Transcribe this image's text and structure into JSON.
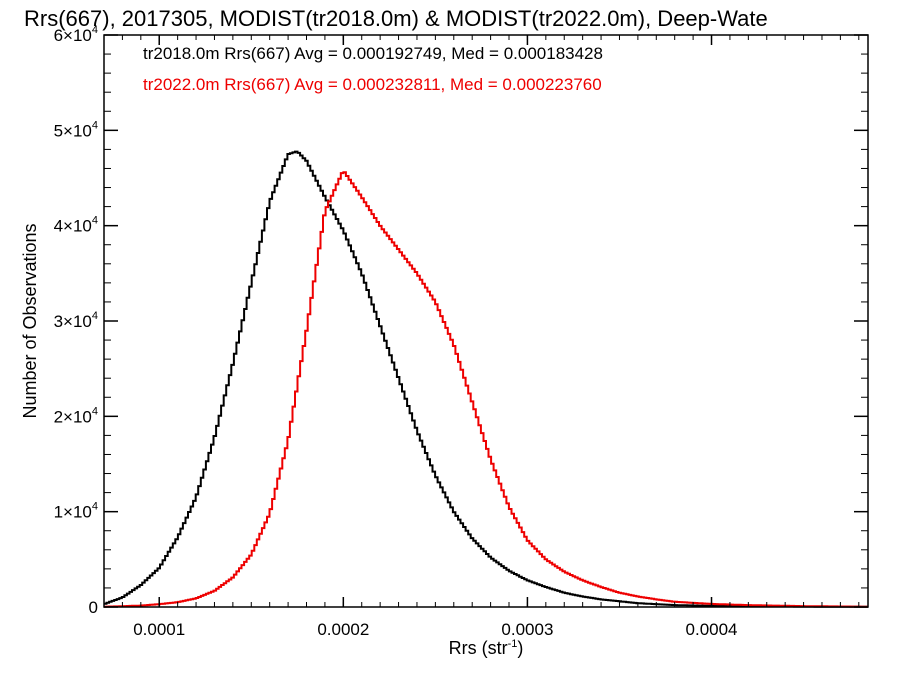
{
  "chart_data": {
    "type": "line",
    "style": "histogram-step",
    "title": "Rrs(667), 2017305, MODIST(tr2018.0m) & MODIST(tr2022.0m), Deep-Wate",
    "xlabel": "Rrs (str",
    "xlabel_exp": "-1",
    "xlabel_close": ")",
    "ylabel": "Number of Observations",
    "xlim": [
      7e-05,
      0.000485
    ],
    "ylim": [
      0,
      60000
    ],
    "x_ticks": [
      {
        "value": 0.0001,
        "label": "0.0001"
      },
      {
        "value": 0.0002,
        "label": "0.0002"
      },
      {
        "value": 0.0003,
        "label": "0.0003"
      },
      {
        "value": 0.0004,
        "label": "0.0004"
      }
    ],
    "y_ticks": [
      {
        "value": 0,
        "label": "0",
        "exp": ""
      },
      {
        "value": 10000,
        "label": "1×10",
        "exp": "4"
      },
      {
        "value": 20000,
        "label": "2×10",
        "exp": "4"
      },
      {
        "value": 30000,
        "label": "3×10",
        "exp": "4"
      },
      {
        "value": 40000,
        "label": "4×10",
        "exp": "4"
      },
      {
        "value": 50000,
        "label": "5×10",
        "exp": "4"
      },
      {
        "value": 60000,
        "label": "6×10",
        "exp": "4"
      }
    ],
    "grid": false,
    "legend_position": "top-left",
    "series": [
      {
        "name": "tr2018.0m",
        "color": "#000000",
        "legend": "tr2018.0m Rrs(667) Avg = 0.000192749, Med = 0.000183428",
        "points": [
          [
            7e-05,
            300
          ],
          [
            8e-05,
            1000
          ],
          [
            9e-05,
            2300
          ],
          [
            0.0001,
            4100
          ],
          [
            0.00011,
            7300
          ],
          [
            0.00012,
            11500
          ],
          [
            0.00013,
            17800
          ],
          [
            0.00014,
            25500
          ],
          [
            0.00015,
            34000
          ],
          [
            0.00016,
            42500
          ],
          [
            0.00017,
            47500
          ],
          [
            0.000175,
            47800
          ],
          [
            0.00018,
            46800
          ],
          [
            0.00019,
            43000
          ],
          [
            0.0002,
            39500
          ],
          [
            0.00021,
            35000
          ],
          [
            0.00022,
            29500
          ],
          [
            0.00023,
            24000
          ],
          [
            0.00024,
            18500
          ],
          [
            0.00025,
            13800
          ],
          [
            0.00026,
            10000
          ],
          [
            0.00027,
            7200
          ],
          [
            0.00028,
            5200
          ],
          [
            0.00029,
            3800
          ],
          [
            0.0003,
            2800
          ],
          [
            0.00031,
            2100
          ],
          [
            0.00032,
            1500
          ],
          [
            0.00033,
            1100
          ],
          [
            0.00034,
            800
          ],
          [
            0.00035,
            600
          ],
          [
            0.00036,
            400
          ],
          [
            0.00037,
            300
          ],
          [
            0.00038,
            200
          ],
          [
            0.0004,
            120
          ],
          [
            0.00042,
            80
          ],
          [
            0.00045,
            40
          ],
          [
            0.000485,
            20
          ]
        ]
      },
      {
        "name": "tr2022.0m",
        "color": "#ee0000",
        "legend": "tr2022.0m Rrs(667) Avg = 0.000232811, Med = 0.000223760",
        "points": [
          [
            7e-05,
            30
          ],
          [
            8e-05,
            80
          ],
          [
            9e-05,
            150
          ],
          [
            0.0001,
            300
          ],
          [
            0.00011,
            500
          ],
          [
            0.00012,
            900
          ],
          [
            0.00013,
            1700
          ],
          [
            0.00014,
            3100
          ],
          [
            0.00015,
            5500
          ],
          [
            0.00016,
            9800
          ],
          [
            0.00017,
            17500
          ],
          [
            0.00018,
            29000
          ],
          [
            0.00019,
            41500
          ],
          [
            0.0002,
            45800
          ],
          [
            0.00021,
            43000
          ],
          [
            0.00022,
            40000
          ],
          [
            0.00023,
            37500
          ],
          [
            0.00024,
            35000
          ],
          [
            0.00025,
            32000
          ],
          [
            0.00026,
            27500
          ],
          [
            0.00027,
            21500
          ],
          [
            0.00028,
            15500
          ],
          [
            0.00029,
            10500
          ],
          [
            0.0003,
            7000
          ],
          [
            0.00031,
            5000
          ],
          [
            0.00032,
            3700
          ],
          [
            0.00033,
            2800
          ],
          [
            0.00034,
            2100
          ],
          [
            0.00035,
            1500
          ],
          [
            0.00036,
            1100
          ],
          [
            0.00037,
            800
          ],
          [
            0.00038,
            550
          ],
          [
            0.0004,
            320
          ],
          [
            0.00042,
            200
          ],
          [
            0.00045,
            90
          ],
          [
            0.000485,
            30
          ]
        ]
      }
    ]
  }
}
